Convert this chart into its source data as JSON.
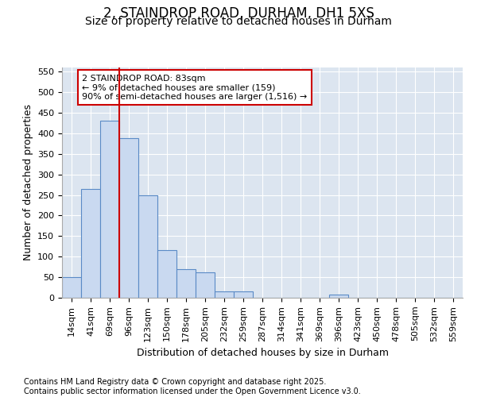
{
  "title_line1": "2, STAINDROP ROAD, DURHAM, DH1 5XS",
  "title_line2": "Size of property relative to detached houses in Durham",
  "xlabel": "Distribution of detached houses by size in Durham",
  "ylabel": "Number of detached properties",
  "categories": [
    "14sqm",
    "41sqm",
    "69sqm",
    "96sqm",
    "123sqm",
    "150sqm",
    "178sqm",
    "205sqm",
    "232sqm",
    "259sqm",
    "287sqm",
    "314sqm",
    "341sqm",
    "369sqm",
    "396sqm",
    "423sqm",
    "450sqm",
    "478sqm",
    "505sqm",
    "532sqm",
    "559sqm"
  ],
  "values": [
    50,
    265,
    430,
    388,
    250,
    115,
    70,
    62,
    15,
    15,
    0,
    0,
    0,
    0,
    8,
    0,
    0,
    0,
    0,
    0,
    0
  ],
  "bar_color": "#c9d9f0",
  "bar_edge_color": "#5a8ac6",
  "vline_color": "#cc0000",
  "vline_pos": 2.5,
  "annotation_text": "2 STAINDROP ROAD: 83sqm\n← 9% of detached houses are smaller (159)\n90% of semi-detached houses are larger (1,516) →",
  "annotation_box_color": "#ffffff",
  "annotation_box_edge": "#cc0000",
  "ylim": [
    0,
    560
  ],
  "yticks": [
    0,
    50,
    100,
    150,
    200,
    250,
    300,
    350,
    400,
    450,
    500,
    550
  ],
  "background_color": "#dce5f0",
  "grid_color": "#ffffff",
  "footer_text": "Contains HM Land Registry data © Crown copyright and database right 2025.\nContains public sector information licensed under the Open Government Licence v3.0.",
  "title_fontsize": 12,
  "subtitle_fontsize": 10,
  "axis_label_fontsize": 9,
  "tick_fontsize": 8,
  "footer_fontsize": 7
}
